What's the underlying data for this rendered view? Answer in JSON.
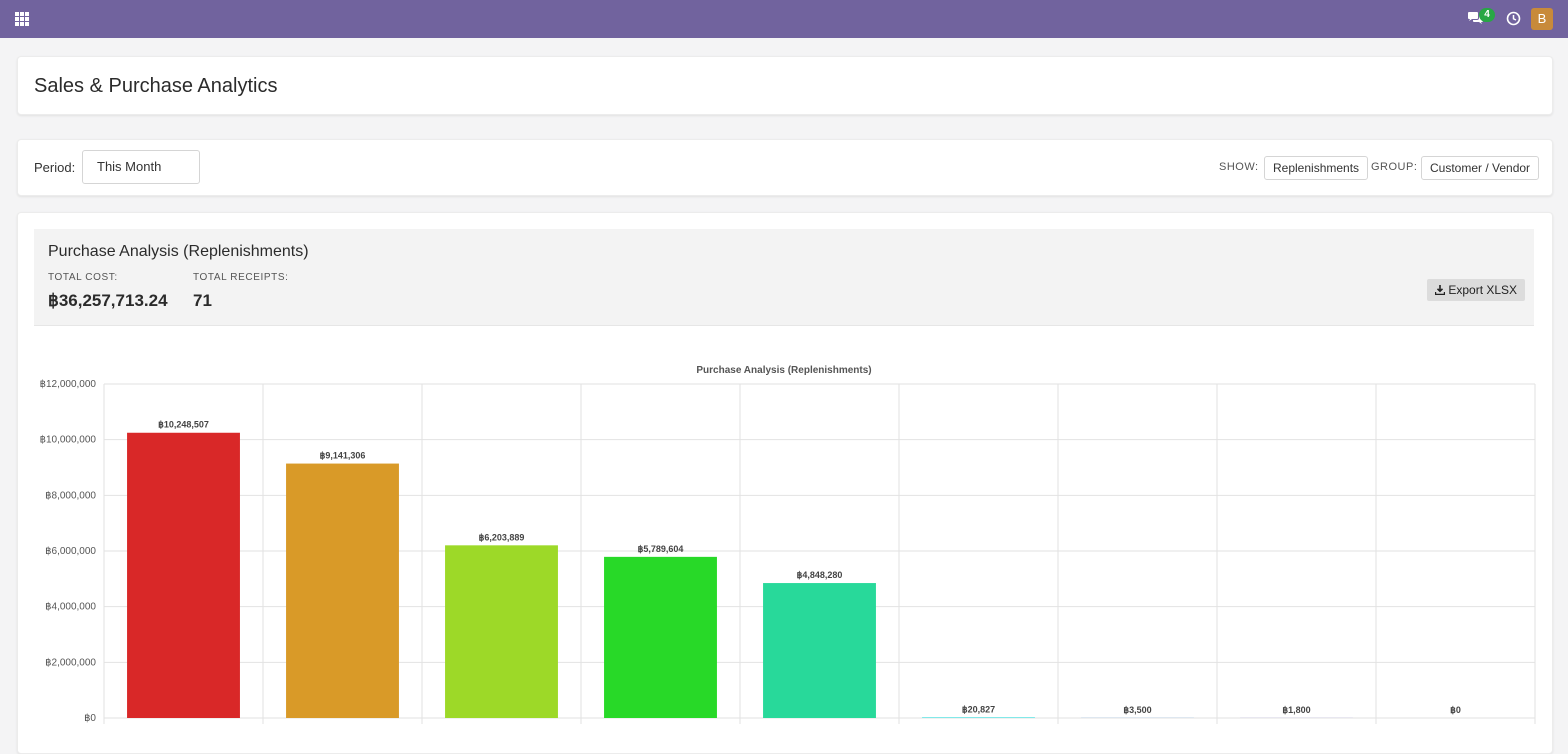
{
  "navbar": {
    "apps_icon": "apps-grid-icon",
    "messages_icon": "chat-bubbles-icon",
    "messages_count": "4",
    "activity_icon": "clock-icon",
    "user_initial": "B",
    "color": "#71639e"
  },
  "header": {
    "title": "Sales & Purchase Analytics"
  },
  "filters": {
    "period_label": "Period:",
    "period_value": "This Month",
    "show_label": "SHOW:",
    "show_value": "Replenishments",
    "group_label": "GROUP:",
    "group_value": "Customer / Vendor"
  },
  "summary": {
    "title": "Purchase Analysis (Replenishments)",
    "total_cost_label": "TOTAL COST:",
    "total_cost_value": "฿36,257,713.24",
    "total_receipts_label": "TOTAL RECEIPTS:",
    "total_receipts_value": "71",
    "export_label": "Export XLSX",
    "export_icon": "download-icon"
  },
  "chart_data": {
    "type": "bar",
    "title": "Purchase Analysis (Replenishments)",
    "ylim": [
      0,
      12000000
    ],
    "yticks": [
      "฿0",
      "฿2,000,000",
      "฿4,000,000",
      "฿6,000,000",
      "฿8,000,000",
      "฿10,000,000",
      "฿12,000,000"
    ],
    "grid": true,
    "values": [
      10248507,
      9141306,
      6203889,
      5789604,
      4848280,
      20827,
      3500,
      1800,
      0
    ],
    "data_labels": [
      "฿10,248,507",
      "฿9,141,306",
      "฿6,203,889",
      "฿5,789,604",
      "฿4,848,280",
      "฿20,827",
      "฿3,500",
      "฿1,800",
      "฿0"
    ],
    "colors": [
      "#d92828",
      "#d99a28",
      "#9dd928",
      "#28d928",
      "#28d99a",
      "#28d9d9",
      "#2883d9",
      "#4a28d9",
      "#9a28d9"
    ]
  }
}
